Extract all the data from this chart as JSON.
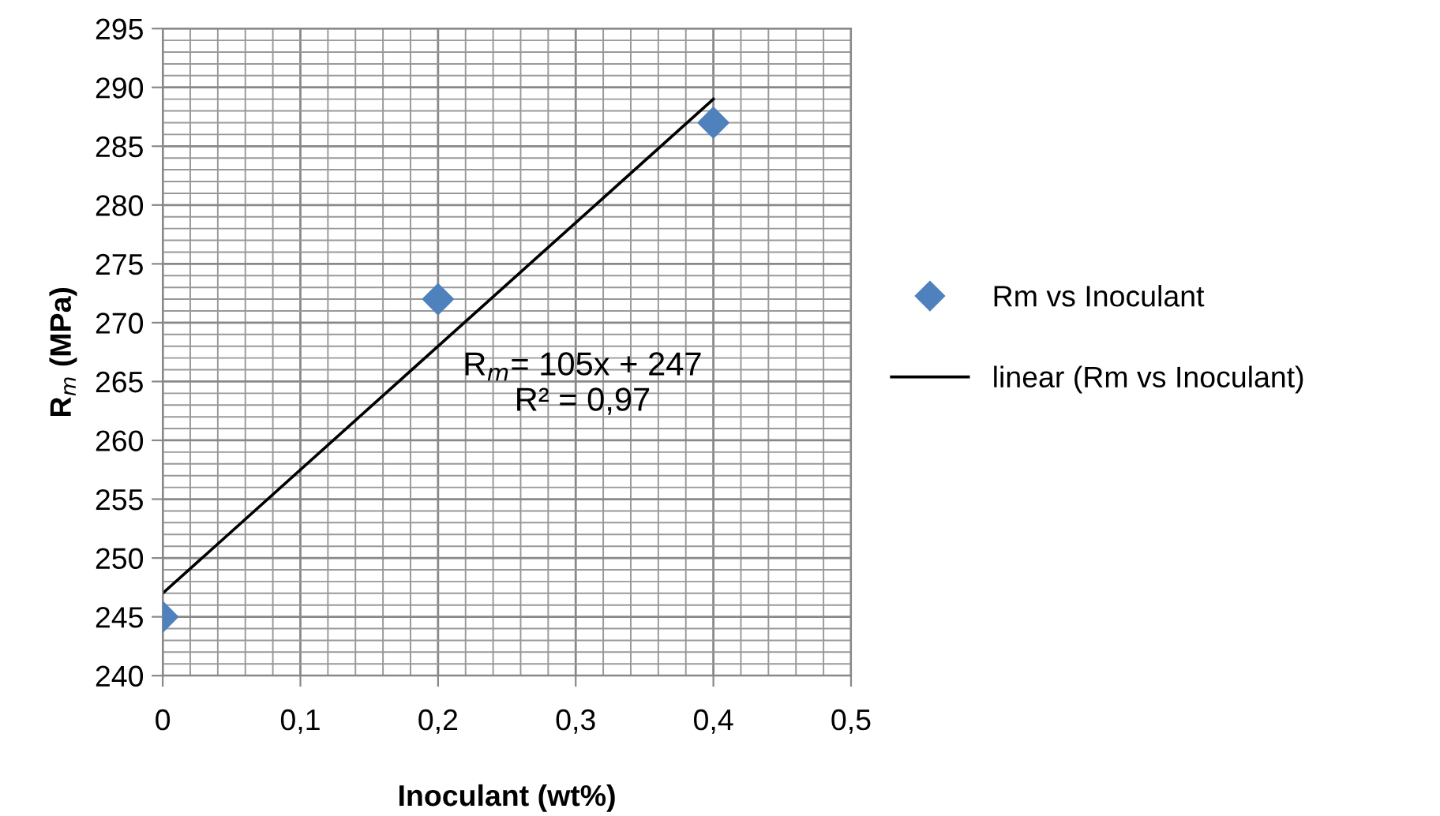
{
  "chart_data": {
    "type": "scatter",
    "xlabel": "Inoculant (wt%)",
    "ylabel": "R$_{m}$ (MPa)",
    "x": [
      0,
      0.2,
      0.4
    ],
    "series": [
      {
        "name": "Rm vs Inoculant",
        "color": "#4f81bd",
        "marker": "diamond",
        "values": [
          245,
          272,
          287
        ]
      },
      {
        "name": "linear (Rm vs Inoculant)",
        "type": "line",
        "color": "#000000",
        "marker": "none",
        "line_style": "solid",
        "x": [
          0,
          0.4
        ],
        "values": [
          247,
          289
        ]
      }
    ],
    "annotations": [
      "R$_{m}$= 105x + 247\nR² = 0,97"
    ],
    "xlim": [
      0,
      0.5
    ],
    "xticks": [
      0,
      {
        "value": 0.1,
        "label": "0,1"
      },
      {
        "value": 0.2,
        "label": "0,2"
      },
      {
        "value": 0.3,
        "label": "0,3"
      },
      {
        "value": 0.4,
        "label": "0,4"
      },
      {
        "value": 0.5,
        "label": "0,5"
      }
    ],
    "ylim": [
      240,
      295
    ],
    "yticks": [
      240,
      245,
      250,
      255,
      260,
      265,
      270,
      275,
      280,
      285,
      290,
      295
    ],
    "grid": true,
    "legend": "right"
  }
}
